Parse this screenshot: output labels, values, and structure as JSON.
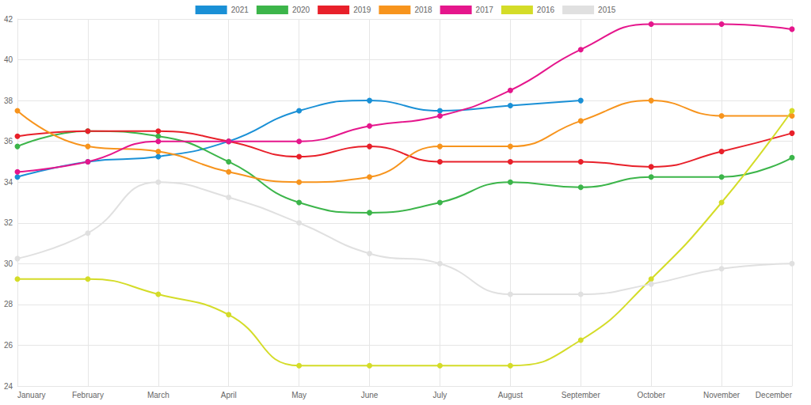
{
  "chart_data": {
    "type": "line",
    "categories": [
      "January",
      "February",
      "March",
      "April",
      "May",
      "June",
      "July",
      "August",
      "September",
      "October",
      "November",
      "December"
    ],
    "series": [
      {
        "name": "2021",
        "color": "#1a90d6",
        "values": [
          34.25,
          35,
          35.25,
          36,
          37.5,
          38,
          37.5,
          37.75,
          38,
          null,
          null,
          null
        ]
      },
      {
        "name": "2020",
        "color": "#3cb54a",
        "values": [
          35.75,
          36.5,
          36.25,
          35,
          33,
          32.5,
          33,
          34,
          33.75,
          34.25,
          34.25,
          35.2
        ]
      },
      {
        "name": "2019",
        "color": "#e8202a",
        "values": [
          36.25,
          36.5,
          36.5,
          36,
          35.25,
          35.75,
          35,
          35,
          35,
          34.75,
          35.5,
          36.4
        ]
      },
      {
        "name": "2018",
        "color": "#f7941d",
        "values": [
          37.5,
          35.75,
          35.5,
          34.5,
          34,
          34.25,
          35.75,
          35.75,
          37,
          38,
          37.25,
          37.25
        ]
      },
      {
        "name": "2017",
        "color": "#e5168c",
        "values": [
          34.5,
          35,
          36,
          36,
          36,
          36.75,
          37.25,
          38.5,
          40.5,
          41.75,
          41.75,
          41.5
        ]
      },
      {
        "name": "2016",
        "color": "#d4dc28",
        "values": [
          29.25,
          29.25,
          28.5,
          27.5,
          25,
          25,
          25,
          25,
          26.25,
          29.25,
          33,
          37.5
        ]
      },
      {
        "name": "2015",
        "color": "#e0e0e0",
        "values": [
          30.25,
          31.5,
          34,
          33.25,
          32,
          30.5,
          30,
          28.5,
          28.5,
          29,
          29.75,
          30
        ]
      }
    ],
    "ylim": [
      24,
      42
    ],
    "yticks": [
      24,
      26,
      28,
      30,
      32,
      34,
      36,
      38,
      40,
      42
    ],
    "grid": true,
    "legend": "top",
    "marker": "circle",
    "line_style": "smooth"
  }
}
